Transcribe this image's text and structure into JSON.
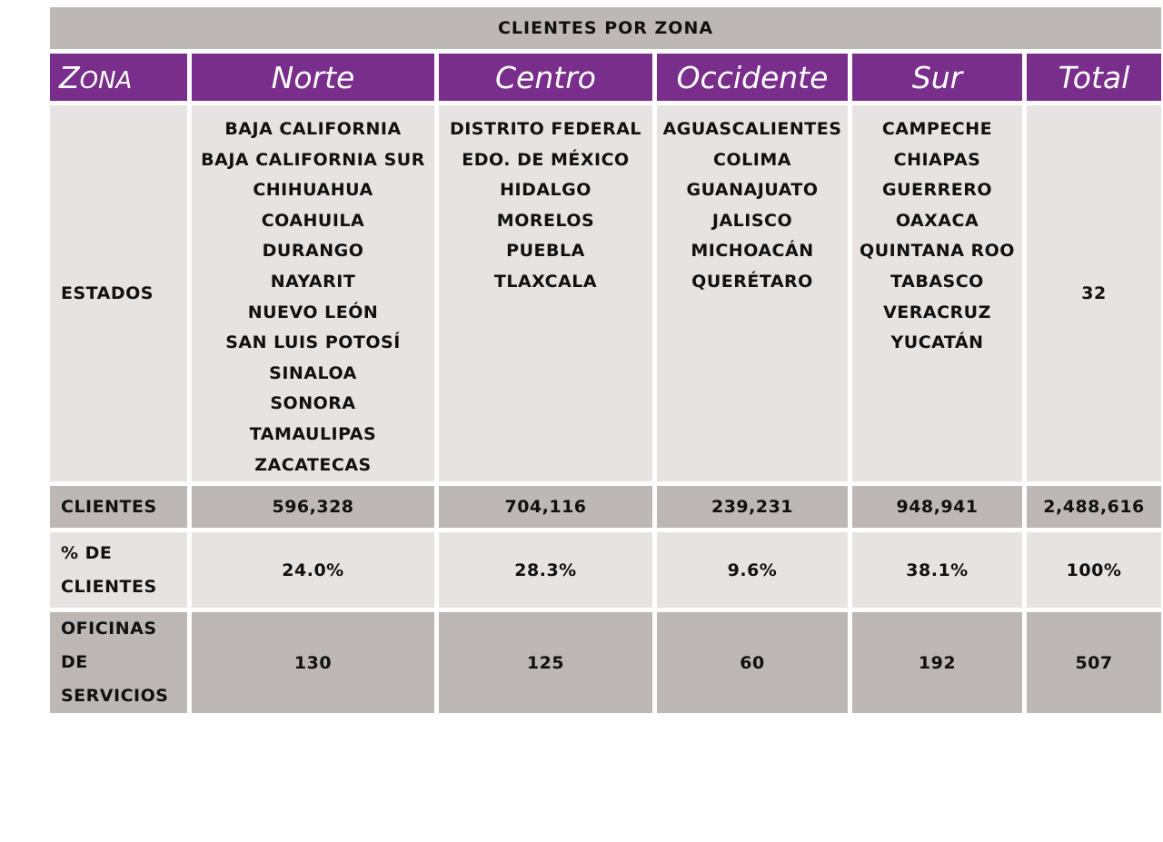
{
  "title": "CLIENTES POR ZONA",
  "header": {
    "zona_first": "Z",
    "zona_rest": "ONA",
    "zones": [
      "Norte",
      "Centro",
      "Occidente",
      "Sur"
    ],
    "total": "Total"
  },
  "estados": {
    "label": "ESTADOS",
    "norte": [
      "BAJA CALIFORNIA",
      "BAJA CALIFORNIA SUR",
      "CHIHUAHUA",
      "COAHUILA",
      "DURANGO",
      "NAYARIT",
      "NUEVO LEÓN",
      "SAN LUIS POTOSÍ",
      "SINALOA",
      "SONORA",
      "TAMAULIPAS",
      "ZACATECAS"
    ],
    "centro": [
      "DISTRITO FEDERAL",
      "EDO. DE MÉXICO",
      "HIDALGO",
      "MORELOS",
      "PUEBLA",
      "TLAXCALA"
    ],
    "occidente": [
      "AGUASCALIENTES",
      "COLIMA",
      "GUANAJUATO",
      "JALISCO",
      "MICHOACÁN",
      "QUERÉTARO"
    ],
    "sur": [
      "CAMPECHE",
      "CHIAPAS",
      "GUERRERO",
      "OAXACA",
      "QUINTANA ROO",
      "TABASCO",
      "VERACRUZ",
      "YUCATÁN"
    ],
    "total": "32"
  },
  "clientes": {
    "label": "CLIENTES",
    "values": [
      "596,328",
      "704,116",
      "239,231",
      "948,941"
    ],
    "total": "2,488,616"
  },
  "pct_clientes": {
    "label_line1": "% DE",
    "label_line2": "CLIENTES",
    "values": [
      "24.0%",
      "28.3%",
      "9.6%",
      "38.1%"
    ],
    "total": "100%"
  },
  "oficinas": {
    "label_line1": "OFICINAS DE",
    "label_line2": "SERVICIOS",
    "values": [
      "130",
      "125",
      "60",
      "192"
    ],
    "total": "507"
  },
  "colors": {
    "header_purple": "#7a2e8c",
    "dark_gray": "#bdb7b5",
    "light_gray": "#e6e3e2"
  }
}
